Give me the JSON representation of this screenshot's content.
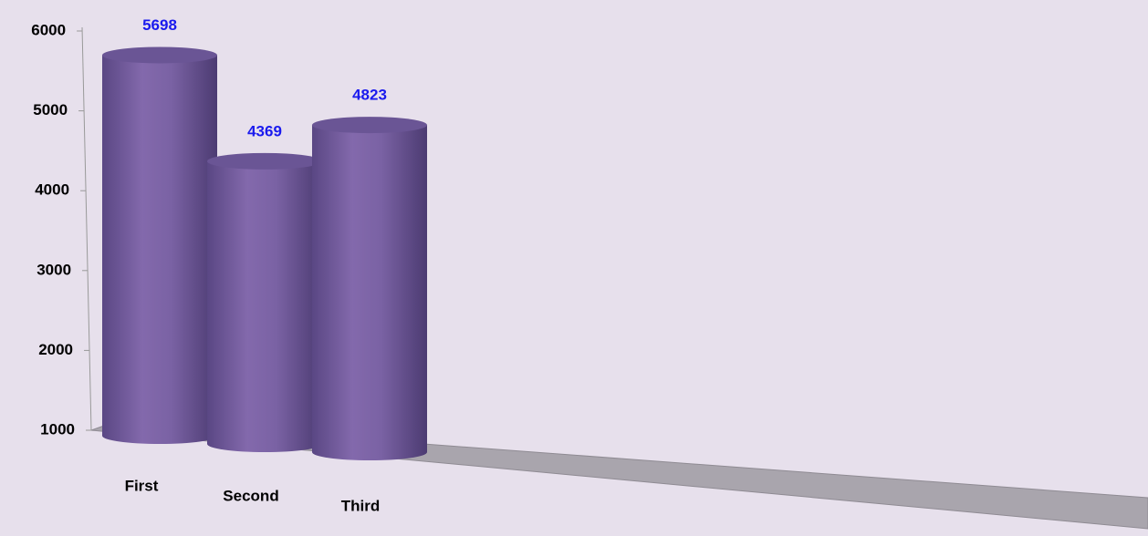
{
  "chart_data": {
    "type": "bar3d",
    "categories": [
      "First",
      "Second",
      "Third"
    ],
    "values": [
      5698,
      4369,
      4823
    ],
    "color": "#7560a0",
    "label_color": "#1a1aee",
    "ylim": [
      1000,
      6000
    ],
    "yticks": [
      1000,
      2000,
      3000,
      4000,
      5000,
      6000
    ]
  }
}
